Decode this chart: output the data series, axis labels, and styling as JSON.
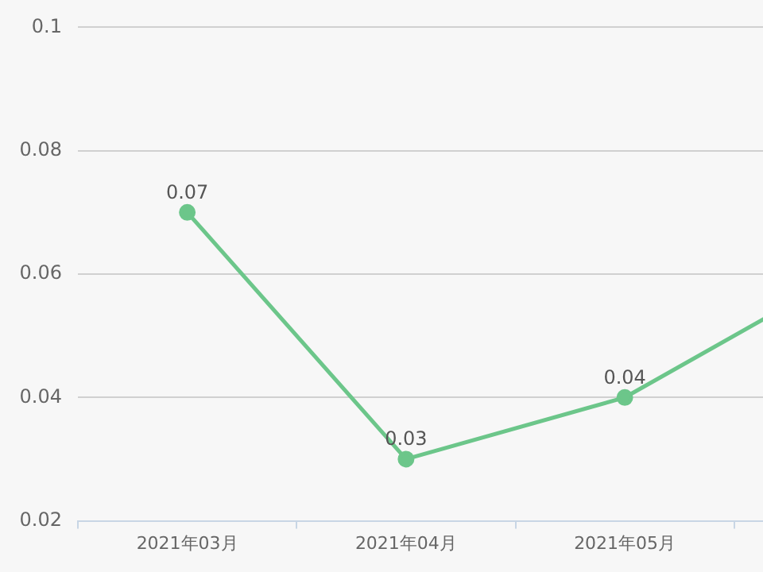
{
  "chart_data": {
    "type": "line",
    "categories": [
      "2021年03月",
      "2021年04月",
      "2021年05月",
      null
    ],
    "series": [
      {
        "color": "#6cc68a",
        "values": [
          0.07,
          0.03,
          0.04,
          0.06
        ],
        "value_labels": [
          "0.07",
          "0.03",
          "0.04",
          null
        ]
      }
    ],
    "ylim": [
      0.02,
      0.1
    ],
    "yticks": [
      0.02,
      0.04,
      0.06,
      0.08,
      0.1
    ],
    "grid": "y",
    "legend": false,
    "marker": "circle",
    "line_style": "solid"
  }
}
